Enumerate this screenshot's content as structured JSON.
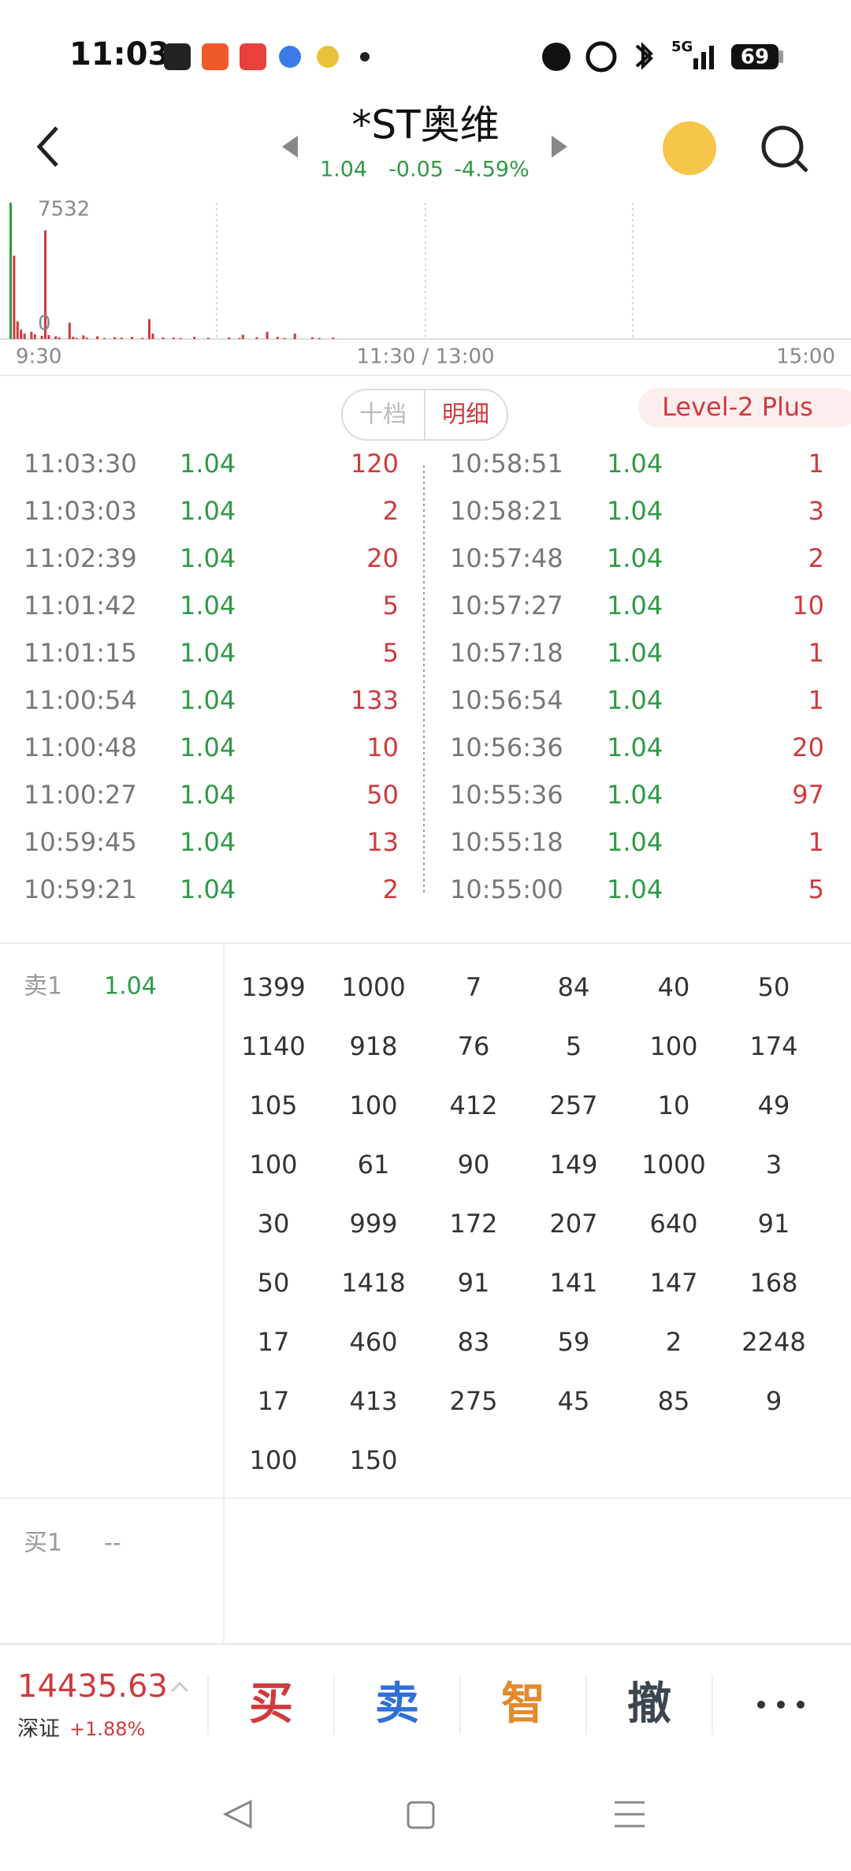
{
  "status": {
    "time": "11:03",
    "network": "5G",
    "battery": "69"
  },
  "header": {
    "title": "*ST奥维",
    "price": "1.04",
    "change": "-0.05",
    "pct": "-4.59%"
  },
  "volume_chart": {
    "ymax": 7532,
    "ymin": 0,
    "time_labels": [
      "9:30",
      "11:30 / 13:00",
      "15:00"
    ],
    "values": [
      7532,
      4600,
      980,
      520,
      300,
      0,
      400,
      260,
      0,
      180,
      6000,
      220,
      0,
      150,
      90,
      0,
      0,
      900,
      120,
      60,
      0,
      200,
      80,
      0,
      0,
      150,
      0,
      60,
      0,
      0,
      100,
      0,
      80,
      0,
      0,
      120,
      0,
      0,
      60,
      0,
      1100,
      300,
      0,
      0,
      90,
      0,
      0,
      80,
      0,
      60,
      0,
      0,
      0,
      120,
      0,
      0,
      0,
      70,
      0,
      0,
      0,
      0,
      0,
      90,
      0,
      0,
      60,
      240,
      0,
      0,
      0,
      100,
      0,
      0,
      400,
      0,
      0,
      120,
      0,
      60,
      0,
      0,
      300,
      0,
      0,
      0,
      0,
      100,
      0,
      60,
      0,
      0,
      0,
      80
    ]
  },
  "tabs": [
    "十档",
    "明细",
    "Level-2 Plus"
  ],
  "trades": {
    "left": [
      [
        "11:03:30",
        "1.04",
        120
      ],
      [
        "11:03:03",
        "1.04",
        2
      ],
      [
        "11:02:39",
        "1.04",
        20
      ],
      [
        "11:01:42",
        "1.04",
        5
      ],
      [
        "11:01:15",
        "1.04",
        5
      ],
      [
        "11:00:54",
        "1.04",
        133
      ],
      [
        "11:00:48",
        "1.04",
        10
      ],
      [
        "11:00:27",
        "1.04",
        50
      ],
      [
        "10:59:45",
        "1.04",
        13
      ],
      [
        "10:59:21",
        "1.04",
        2
      ]
    ],
    "right": [
      [
        "10:58:51",
        "1.04",
        1
      ],
      [
        "10:58:21",
        "1.04",
        3
      ],
      [
        "10:57:48",
        "1.04",
        2
      ],
      [
        "10:57:27",
        "1.04",
        10
      ],
      [
        "10:57:18",
        "1.04",
        1
      ],
      [
        "10:56:54",
        "1.04",
        1
      ],
      [
        "10:56:36",
        "1.04",
        20
      ],
      [
        "10:55:36",
        "1.04",
        97
      ],
      [
        "10:55:18",
        "1.04",
        1
      ],
      [
        "10:55:00",
        "1.04",
        5
      ]
    ]
  },
  "sell": {
    "label": "卖1",
    "price": "1.04",
    "orders": [
      1399,
      1000,
      7,
      84,
      40,
      50,
      1140,
      918,
      76,
      5,
      100,
      174,
      105,
      100,
      412,
      257,
      10,
      49,
      100,
      61,
      90,
      149,
      1000,
      3,
      30,
      999,
      172,
      207,
      640,
      91,
      50,
      1418,
      91,
      141,
      147,
      168,
      17,
      460,
      83,
      59,
      2,
      2248,
      17,
      413,
      275,
      45,
      85,
      9,
      100,
      150
    ]
  },
  "buy": {
    "label": "买1",
    "price": "--"
  },
  "footer": {
    "index_value": "14435.63",
    "index_name": "深证",
    "index_change": "+1.88%",
    "buttons": [
      "买",
      "卖",
      "智",
      "撤"
    ]
  }
}
